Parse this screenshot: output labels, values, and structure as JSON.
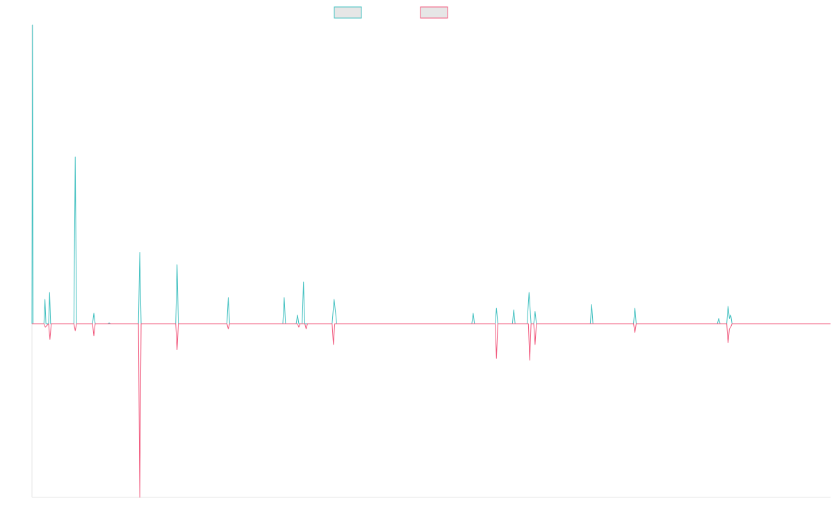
{
  "chart_data": {
    "type": "line",
    "title": "",
    "xlabel": "",
    "ylabel": "",
    "xlim": [
      0,
      1200
    ],
    "ylim": [
      -1.0,
      1.72
    ],
    "grid": false,
    "legend_position": "top-center",
    "series": [
      {
        "color": "#3ebfbf",
        "points": [
          [
            0,
            0.0
          ],
          [
            0.8,
            1.72
          ],
          [
            1.6,
            0.0
          ],
          [
            18,
            0.0
          ],
          [
            19.5,
            0.14
          ],
          [
            21,
            0.0
          ],
          [
            25,
            0.0
          ],
          [
            26.5,
            0.18
          ],
          [
            28,
            0.0
          ],
          [
            63,
            0.0
          ],
          [
            65,
            0.96
          ],
          [
            67,
            0.0
          ],
          [
            91,
            0.0
          ],
          [
            93,
            0.06
          ],
          [
            95,
            0.0
          ],
          [
            114,
            0.0
          ],
          [
            116,
            0.004
          ],
          [
            118,
            0.0
          ],
          [
            160,
            0.0
          ],
          [
            162,
            0.41
          ],
          [
            164,
            0.0
          ],
          [
            216,
            0.0
          ],
          [
            218,
            0.34
          ],
          [
            220,
            0.0
          ],
          [
            293,
            0.0
          ],
          [
            295,
            0.15
          ],
          [
            297,
            0.0
          ],
          [
            377,
            0.0
          ],
          [
            379,
            0.15
          ],
          [
            381,
            0.0
          ],
          [
            397,
            0.0
          ],
          [
            399,
            0.05
          ],
          [
            401,
            0.0
          ],
          [
            406,
            0.0
          ],
          [
            408,
            0.24
          ],
          [
            410,
            0.0
          ],
          [
            451,
            0.0
          ],
          [
            454,
            0.14
          ],
          [
            458,
            0.0
          ],
          [
            661,
            0.0
          ],
          [
            663,
            0.06
          ],
          [
            665,
            0.0
          ],
          [
            696,
            0.0
          ],
          [
            698,
            0.09
          ],
          [
            700,
            0.0
          ],
          [
            722,
            0.0
          ],
          [
            724,
            0.08
          ],
          [
            726,
            0.0
          ],
          [
            744,
            0.0
          ],
          [
            747,
            0.18
          ],
          [
            750,
            0.0
          ],
          [
            754,
            0.0
          ],
          [
            756,
            0.07
          ],
          [
            758,
            0.0
          ],
          [
            839,
            0.0
          ],
          [
            841,
            0.11
          ],
          [
            843,
            0.0
          ],
          [
            904,
            0.0
          ],
          [
            906,
            0.09
          ],
          [
            908,
            0.0
          ],
          [
            1030,
            0.0
          ],
          [
            1032,
            0.03
          ],
          [
            1034,
            0.0
          ],
          [
            1044,
            0.0
          ],
          [
            1046,
            0.1
          ],
          [
            1048,
            0.03
          ],
          [
            1050,
            0.05
          ],
          [
            1052,
            0.0
          ],
          [
            1200,
            0.0
          ]
        ]
      },
      {
        "color": "#f0557a",
        "points": [
          [
            0,
            0.0
          ],
          [
            18,
            0.0
          ],
          [
            20,
            -0.02
          ],
          [
            25,
            0.0
          ],
          [
            27,
            -0.09
          ],
          [
            29,
            0.0
          ],
          [
            63,
            0.0
          ],
          [
            65,
            -0.04
          ],
          [
            67,
            0.0
          ],
          [
            91,
            0.0
          ],
          [
            93,
            -0.07
          ],
          [
            95,
            0.0
          ],
          [
            160,
            0.0
          ],
          [
            162,
            -1.0
          ],
          [
            164,
            0.0
          ],
          [
            216,
            0.0
          ],
          [
            218,
            -0.15
          ],
          [
            220,
            0.0
          ],
          [
            293,
            0.0
          ],
          [
            295,
            -0.03
          ],
          [
            297,
            0.0
          ],
          [
            399,
            0.0
          ],
          [
            401,
            -0.02
          ],
          [
            403,
            0.0
          ],
          [
            410,
            0.0
          ],
          [
            412,
            -0.03
          ],
          [
            414,
            0.0
          ],
          [
            451,
            0.0
          ],
          [
            453,
            -0.12
          ],
          [
            455,
            0.0
          ],
          [
            696,
            0.0
          ],
          [
            698,
            -0.2
          ],
          [
            700,
            0.0
          ],
          [
            746,
            0.0
          ],
          [
            748,
            -0.21
          ],
          [
            750,
            0.0
          ],
          [
            754,
            0.0
          ],
          [
            756,
            -0.12
          ],
          [
            758,
            0.0
          ],
          [
            904,
            0.0
          ],
          [
            906,
            -0.05
          ],
          [
            908,
            0.0
          ],
          [
            1044,
            0.0
          ],
          [
            1046,
            -0.11
          ],
          [
            1048,
            -0.03
          ],
          [
            1050,
            -0.02
          ],
          [
            1052,
            0.0
          ],
          [
            1200,
            0.0
          ]
        ]
      }
    ]
  }
}
